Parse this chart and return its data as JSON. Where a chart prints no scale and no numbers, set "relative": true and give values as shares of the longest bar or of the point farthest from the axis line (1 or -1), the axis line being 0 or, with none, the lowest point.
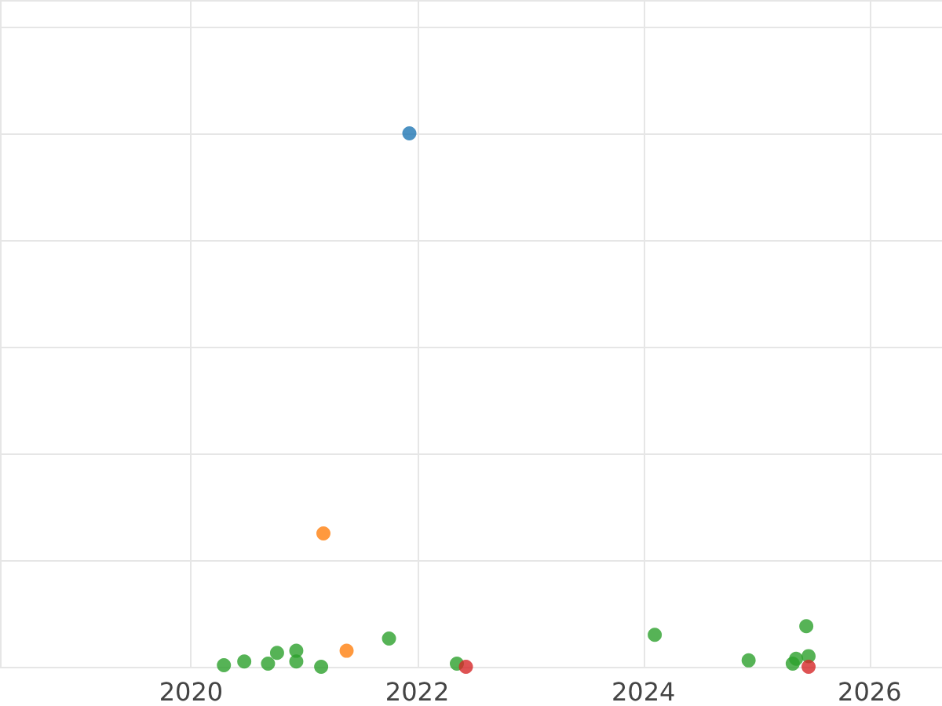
{
  "chart_data": {
    "type": "scatter",
    "relative": true,
    "grid": true,
    "marker": "circle",
    "xlim": [
      2018.31,
      2026.64
    ],
    "xticks": [
      2020,
      2022,
      2024,
      2026
    ],
    "series": [
      {
        "color": "#1f77b4",
        "x": [
          2021.93
        ],
        "values": [
          1
        ]
      },
      {
        "color": "#ff7f0e",
        "x": [
          2021.17,
          2021.375
        ],
        "values": [
          0.25,
          0.03
        ]
      },
      {
        "color": "#2ca02c",
        "x": [
          2020.29,
          2020.47,
          2020.68,
          2020.76,
          2020.93,
          2020.93,
          2021.15,
          2021.75,
          2022.35,
          2024.1,
          2024.93,
          2025.32,
          2025.35,
          2025.44,
          2025.46
        ],
        "values": [
          0.003,
          0.01,
          0.006,
          0.026,
          0.03,
          0.01,
          0,
          0.053,
          0.006,
          0.06,
          0.012,
          0.006,
          0.015,
          0.076,
          0.02
        ]
      },
      {
        "color": "#d62728",
        "x": [
          2022.43,
          2025.46
        ],
        "values": [
          0,
          0
        ]
      }
    ]
  }
}
